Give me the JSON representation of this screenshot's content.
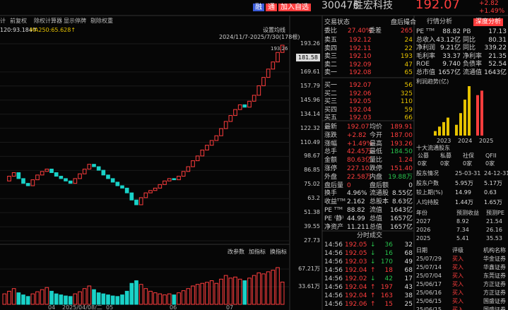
{
  "header": {
    "buttons": [
      "融",
      "通",
      "加入自选"
    ],
    "code": "300476",
    "name": "胜宏科技",
    "price": "192.07",
    "change": "+2.82",
    "pct": "+1.49%"
  },
  "toolbar": [
    "计",
    "前复权",
    "除权计算器",
    "显示停牌",
    "剔除权重"
  ],
  "chart": {
    "ma": [
      "120:93.184↑",
      "MA250:65.628↑"
    ],
    "setting": "设置均线",
    "range": "2024/11/7-2025/7/30(178根)",
    "peak": "193.26",
    "current": 181.58,
    "yticks": [
      193.26,
      169.61,
      157.79,
      145.96,
      134.14,
      122.32,
      110.49,
      98.67,
      86.85,
      75.02,
      63.2,
      51.38,
      39.55,
      27.73
    ],
    "close": [
      78,
      82,
      85,
      80,
      76,
      74,
      79,
      83,
      86,
      88,
      85,
      82,
      80,
      78,
      76,
      80,
      84,
      88,
      92,
      90,
      87,
      83,
      80,
      77,
      74,
      72,
      68,
      62,
      58,
      64,
      68,
      70,
      72,
      75,
      78,
      80,
      79,
      82,
      86,
      90,
      95,
      99,
      104,
      108,
      112,
      116,
      122,
      128,
      133,
      138,
      142,
      140,
      145,
      150,
      158,
      165,
      172,
      178,
      186,
      192.07
    ],
    "volume": [
      20,
      25,
      30,
      22,
      18,
      15,
      20,
      24,
      28,
      32,
      25,
      20,
      18,
      16,
      15,
      20,
      24,
      30,
      35,
      28,
      22,
      20,
      18,
      16,
      15,
      18,
      25,
      40,
      45,
      38,
      30,
      25,
      22,
      20,
      18,
      20,
      18,
      22,
      26,
      30,
      35,
      38,
      40,
      42,
      45,
      40,
      48,
      55,
      50,
      52,
      48,
      45,
      50,
      55,
      60,
      58,
      62,
      65,
      70,
      42.45
    ],
    "vticks": [
      {
        "value": 67.21,
        "label": "67.21万"
      },
      {
        "value": 33.61,
        "label": "33.61万"
      }
    ],
    "xlabels": [
      "04",
      "2025/04/08/二",
      "05",
      "06",
      "07"
    ],
    "buttons": [
      "改参数",
      "加指标",
      "换指标"
    ]
  },
  "orderbook": {
    "status": "交易状态",
    "after": "盘后撮合",
    "ratio_label": "委比",
    "ratio": "27.40%",
    "diff_label": "委差",
    "diff": "265",
    "asks": [
      [
        "卖五",
        "192.12",
        "24"
      ],
      [
        "卖四",
        "192.11",
        "22"
      ],
      [
        "卖三",
        "192.10",
        "193"
      ],
      [
        "卖二",
        "192.09",
        "47"
      ],
      [
        "卖一",
        "192.08",
        "65"
      ]
    ],
    "bids": [
      [
        "买一",
        "192.07",
        "56"
      ],
      [
        "买二",
        "192.06",
        "325"
      ],
      [
        "买三",
        "192.05",
        "110"
      ],
      [
        "买四",
        "192.04",
        "59"
      ],
      [
        "买五",
        "192.03",
        "66"
      ]
    ]
  },
  "stats": [
    [
      "最新",
      "192.07",
      "均价",
      "189.91"
    ],
    [
      "涨跌",
      "+2.82",
      "今开",
      "187.00"
    ],
    [
      "涨幅",
      "+1.49%",
      "最高",
      "193.26"
    ],
    [
      "总手",
      "42.45万",
      "最低",
      "184.50"
    ],
    [
      "金额",
      "80.63亿",
      "量比",
      "1.24"
    ],
    [
      "涨停",
      "227.10",
      "跌停",
      "151.40"
    ],
    [
      "外盘",
      "22.58万",
      "内盘",
      "19.88万"
    ],
    [
      "盘后量",
      "0",
      "盘后额",
      "0"
    ],
    [
      "换手",
      "4.96%",
      "流通股",
      "8.55亿"
    ],
    [
      "收益ᵀᵀᴹ",
      "2.162",
      "总股本",
      "8.63亿"
    ],
    [
      "PE ᵀᵀᴹ",
      "88.82",
      "流值",
      "1643亿"
    ],
    [
      "PE ⁽静⁾",
      "44.99",
      "总值",
      "1657亿"
    ],
    [
      "净资产",
      "11.211",
      "总值",
      "1657亿"
    ]
  ],
  "trades": {
    "title": "分时成交",
    "rows": [
      [
        "14:56",
        "192.05",
        "↓",
        "36",
        "32"
      ],
      [
        "14:56",
        "192.05",
        "↓",
        "16",
        "68"
      ],
      [
        "14:56",
        "192.03",
        "↓",
        "170",
        "49"
      ],
      [
        "14:56",
        "192.04",
        "↑",
        "18",
        "68"
      ],
      [
        "14:56",
        "192.02",
        "↓",
        "42",
        "17"
      ],
      [
        "14:56",
        "192.04",
        "↑",
        "197",
        "43"
      ],
      [
        "14:56",
        "192.04",
        "↑",
        "163",
        "38"
      ],
      [
        "14:56",
        "192.06",
        "↑",
        "15",
        "25"
      ]
    ]
  },
  "finance": {
    "tabs": [
      "行情分析",
      "深度分析"
    ],
    "rows": [
      [
        "PE ᵀᵀᴹ",
        "88.82",
        "PB",
        "17.13"
      ],
      [
        "总收入",
        "43.12亿",
        "同比",
        "80.31"
      ],
      [
        "净利润",
        "9.21亿",
        "同比",
        "339.22"
      ],
      [
        "毛利率",
        "33.37",
        "净利率",
        "21.35"
      ],
      [
        "ROE",
        "9.740",
        "负债率",
        "52.54"
      ],
      [
        "总市值",
        "1657亿",
        "流通值",
        "1643亿"
      ]
    ],
    "profit_title": "利润趋势(亿)",
    "profit_years": [
      "2023",
      "2024",
      "2025"
    ],
    "profit": [
      0.5,
      1.0,
      1.5,
      2.0,
      1.2,
      2.5,
      4.0,
      5.5,
      4.5,
      5.0
    ],
    "holders_title": "十大流通股东",
    "holders": [
      [
        "公募",
        "私募",
        "社保",
        "QFII"
      ],
      [
        "0家",
        "0家",
        "0家",
        "0家"
      ]
    ],
    "share": [
      [
        "股东情况",
        "25-03-31",
        "24-12-31"
      ],
      [
        "股东户数",
        "5.95万",
        "5.17万"
      ],
      [
        "较上期(%)",
        "14.99",
        "0.63"
      ],
      [
        "人均持股",
        "1.44万",
        "1.65万"
      ]
    ],
    "forecast": [
      [
        "年份",
        "预测收益",
        "预测PE"
      ],
      [
        "2027",
        "8.92",
        "21.54"
      ],
      [
        "2026",
        "7.34",
        "26.16"
      ],
      [
        "2025",
        "5.41",
        "35.53"
      ]
    ],
    "ratings": [
      [
        "日期",
        "评级",
        "机构名称"
      ],
      [
        "25/07/29",
        "买入",
        "华金证券"
      ],
      [
        "25/07/14",
        "买入",
        "华鑫证券"
      ],
      [
        "25/07/04",
        "买入",
        "东莞证券"
      ],
      [
        "25/06/17",
        "买入",
        "方正证券"
      ],
      [
        "25/06/16",
        "买入",
        "方正证券"
      ],
      [
        "25/06/15",
        "买入",
        "国盛证券"
      ],
      [
        "25/06/15",
        "买入",
        "国盛证券"
      ]
    ]
  }
}
